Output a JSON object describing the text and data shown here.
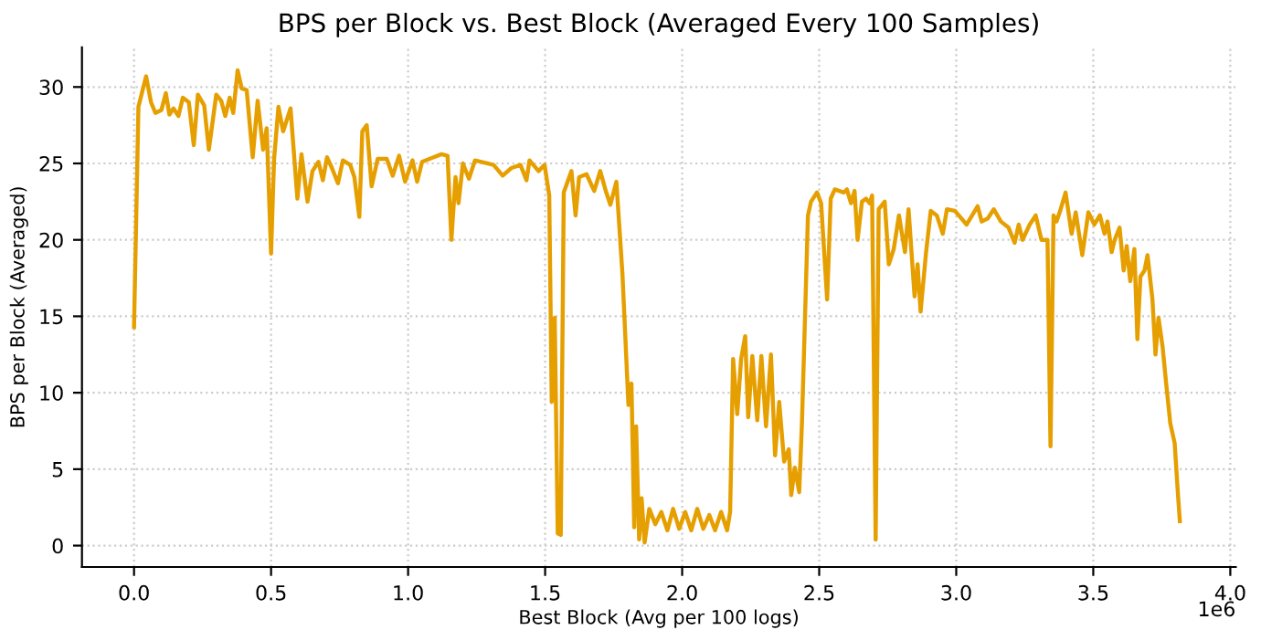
{
  "chart_data": {
    "type": "line",
    "title": "BPS per Block vs. Best Block (Averaged Every 100 Samples)",
    "xlabel": "Best Block (Avg per 100 logs)",
    "ylabel": "BPS per Block (Averaged)",
    "annotations": [
      "1e6"
    ],
    "xlim": [
      -0.19,
      4.02
    ],
    "ylim": [
      -1.4,
      32.6
    ],
    "xticks": [
      {
        "value": 0,
        "label": "0.0"
      },
      {
        "value": 0.5,
        "label": "0.5"
      },
      {
        "value": 1,
        "label": "1.0"
      },
      {
        "value": 1.5,
        "label": "1.5"
      },
      {
        "value": 2,
        "label": "2.0"
      },
      {
        "value": 2.5,
        "label": "2.5"
      },
      {
        "value": 3,
        "label": "3.0"
      },
      {
        "value": 3.5,
        "label": "3.5"
      },
      {
        "value": 4,
        "label": "4.0"
      }
    ],
    "yticks": [
      0,
      5,
      10,
      15,
      20,
      25,
      30
    ],
    "grid": true,
    "line_style": "dotted",
    "marker": "none",
    "series": [
      {
        "color": "#e69f00",
        "line_style": "solid",
        "x": [
          0,
          0.016,
          0.044,
          0.062,
          0.078,
          0.1,
          0.116,
          0.129,
          0.144,
          0.162,
          0.178,
          0.2,
          0.218,
          0.233,
          0.256,
          0.273,
          0.3,
          0.318,
          0.333,
          0.349,
          0.362,
          0.378,
          0.393,
          0.411,
          0.433,
          0.451,
          0.471,
          0.484,
          0.5,
          0.511,
          0.527,
          0.544,
          0.571,
          0.596,
          0.611,
          0.633,
          0.651,
          0.673,
          0.689,
          0.704,
          0.722,
          0.744,
          0.762,
          0.789,
          0.804,
          0.822,
          0.833,
          0.849,
          0.867,
          0.889,
          0.922,
          0.944,
          0.967,
          0.989,
          1.016,
          1.033,
          1.051,
          1.078,
          1.122,
          1.144,
          1.158,
          1.173,
          1.184,
          1.2,
          1.222,
          1.244,
          1.312,
          1.345,
          1.377,
          1.41,
          1.432,
          1.443,
          1.476,
          1.498,
          1.515,
          1.524,
          1.535,
          1.546,
          1.557,
          1.568,
          1.596,
          1.611,
          1.624,
          1.651,
          1.679,
          1.701,
          1.723,
          1.738,
          1.76,
          1.782,
          1.804,
          1.815,
          1.825,
          1.832,
          1.843,
          1.852,
          1.863,
          1.88,
          1.902,
          1.924,
          1.946,
          1.967,
          1.989,
          2.011,
          2.033,
          2.055,
          2.077,
          2.099,
          2.12,
          2.142,
          2.164,
          2.175,
          2.186,
          2.201,
          2.215,
          2.23,
          2.241,
          2.256,
          2.274,
          2.289,
          2.306,
          2.324,
          2.339,
          2.354,
          2.372,
          2.389,
          2.398,
          2.411,
          2.427,
          2.437,
          2.459,
          2.47,
          2.492,
          2.507,
          2.529,
          2.542,
          2.557,
          2.59,
          2.601,
          2.616,
          2.629,
          2.64,
          2.656,
          2.671,
          2.684,
          2.693,
          2.706,
          2.717,
          2.739,
          2.754,
          2.772,
          2.791,
          2.813,
          2.826,
          2.848,
          2.859,
          2.87,
          2.89,
          2.907,
          2.929,
          2.951,
          2.966,
          2.995,
          3.038,
          3.078,
          3.093,
          3.115,
          3.137,
          3.163,
          3.191,
          3.213,
          3.228,
          3.242,
          3.268,
          3.29,
          3.311,
          3.333,
          3.344,
          3.355,
          3.366,
          3.381,
          3.399,
          3.421,
          3.436,
          3.46,
          3.482,
          3.504,
          3.524,
          3.541,
          3.552,
          3.567,
          3.578,
          3.596,
          3.611,
          3.622,
          3.635,
          3.65,
          3.661,
          3.672,
          3.687,
          3.698,
          3.716,
          3.727,
          3.738,
          3.753,
          3.766,
          3.781,
          3.797,
          3.81,
          3.816
        ],
        "values": [
          14.3,
          28.7,
          30.7,
          29,
          28.3,
          28.5,
          29.6,
          28.2,
          28.6,
          28.1,
          29.3,
          29,
          26.2,
          29.5,
          28.8,
          25.9,
          29.5,
          29.1,
          28.1,
          29.3,
          28.3,
          31.1,
          29.9,
          29.8,
          25.4,
          29.1,
          25.9,
          27.3,
          19.1,
          25.3,
          28.7,
          27.1,
          28.6,
          22.7,
          25.6,
          22.5,
          24.5,
          25.1,
          23.9,
          25.4,
          24.7,
          23.7,
          25.2,
          24.9,
          24.1,
          21.5,
          27.1,
          27.5,
          23.5,
          25.3,
          25.3,
          24.2,
          25.5,
          23.8,
          25.2,
          23.8,
          25.1,
          25.3,
          25.6,
          25.5,
          20,
          24.1,
          22.4,
          25,
          24,
          25.2,
          24.9,
          24.2,
          24.7,
          24.9,
          23.9,
          25.2,
          24.5,
          24.9,
          22.9,
          9.4,
          14.9,
          0.8,
          0.7,
          23.1,
          24.5,
          21.6,
          24.1,
          24.3,
          23.2,
          24.5,
          23.1,
          22.3,
          23.8,
          17.8,
          9.2,
          10.6,
          1.2,
          7.8,
          0.4,
          3.1,
          0.2,
          2.4,
          1.4,
          2.2,
          1.0,
          2.4,
          1.1,
          2.2,
          1.0,
          2.4,
          1.1,
          2.0,
          1.0,
          2.2,
          1.0,
          2.2,
          12.2,
          8.6,
          12.2,
          13.7,
          8.4,
          12.4,
          8.2,
          12.4,
          7.8,
          12.5,
          5.9,
          9.4,
          5.5,
          6.3,
          3.3,
          5.1,
          3.5,
          8,
          21.6,
          22.5,
          23.1,
          22.4,
          16.1,
          22.7,
          23.3,
          23.1,
          23.3,
          22.4,
          23.2,
          20,
          22.5,
          22.7,
          22.4,
          22.9,
          0.4,
          22,
          22.5,
          18.4,
          19.4,
          21.6,
          19.2,
          22,
          16.3,
          18.4,
          15.3,
          19.2,
          21.9,
          21.6,
          20.4,
          22,
          21.9,
          21,
          22.2,
          21.2,
          21.4,
          22,
          21.2,
          20.8,
          19.8,
          21,
          20,
          21,
          21.6,
          20,
          20,
          6.5,
          21.6,
          21.2,
          22,
          23.1,
          20.4,
          21.8,
          19,
          21.8,
          21,
          21.6,
          20.4,
          21.2,
          19.2,
          20,
          20.8,
          18,
          19.6,
          17.3,
          19.4,
          13.5,
          17.6,
          18,
          19,
          16.1,
          12.5,
          14.9,
          13,
          10.6,
          8,
          6.7,
          3.1,
          1.6
        ]
      }
    ]
  }
}
